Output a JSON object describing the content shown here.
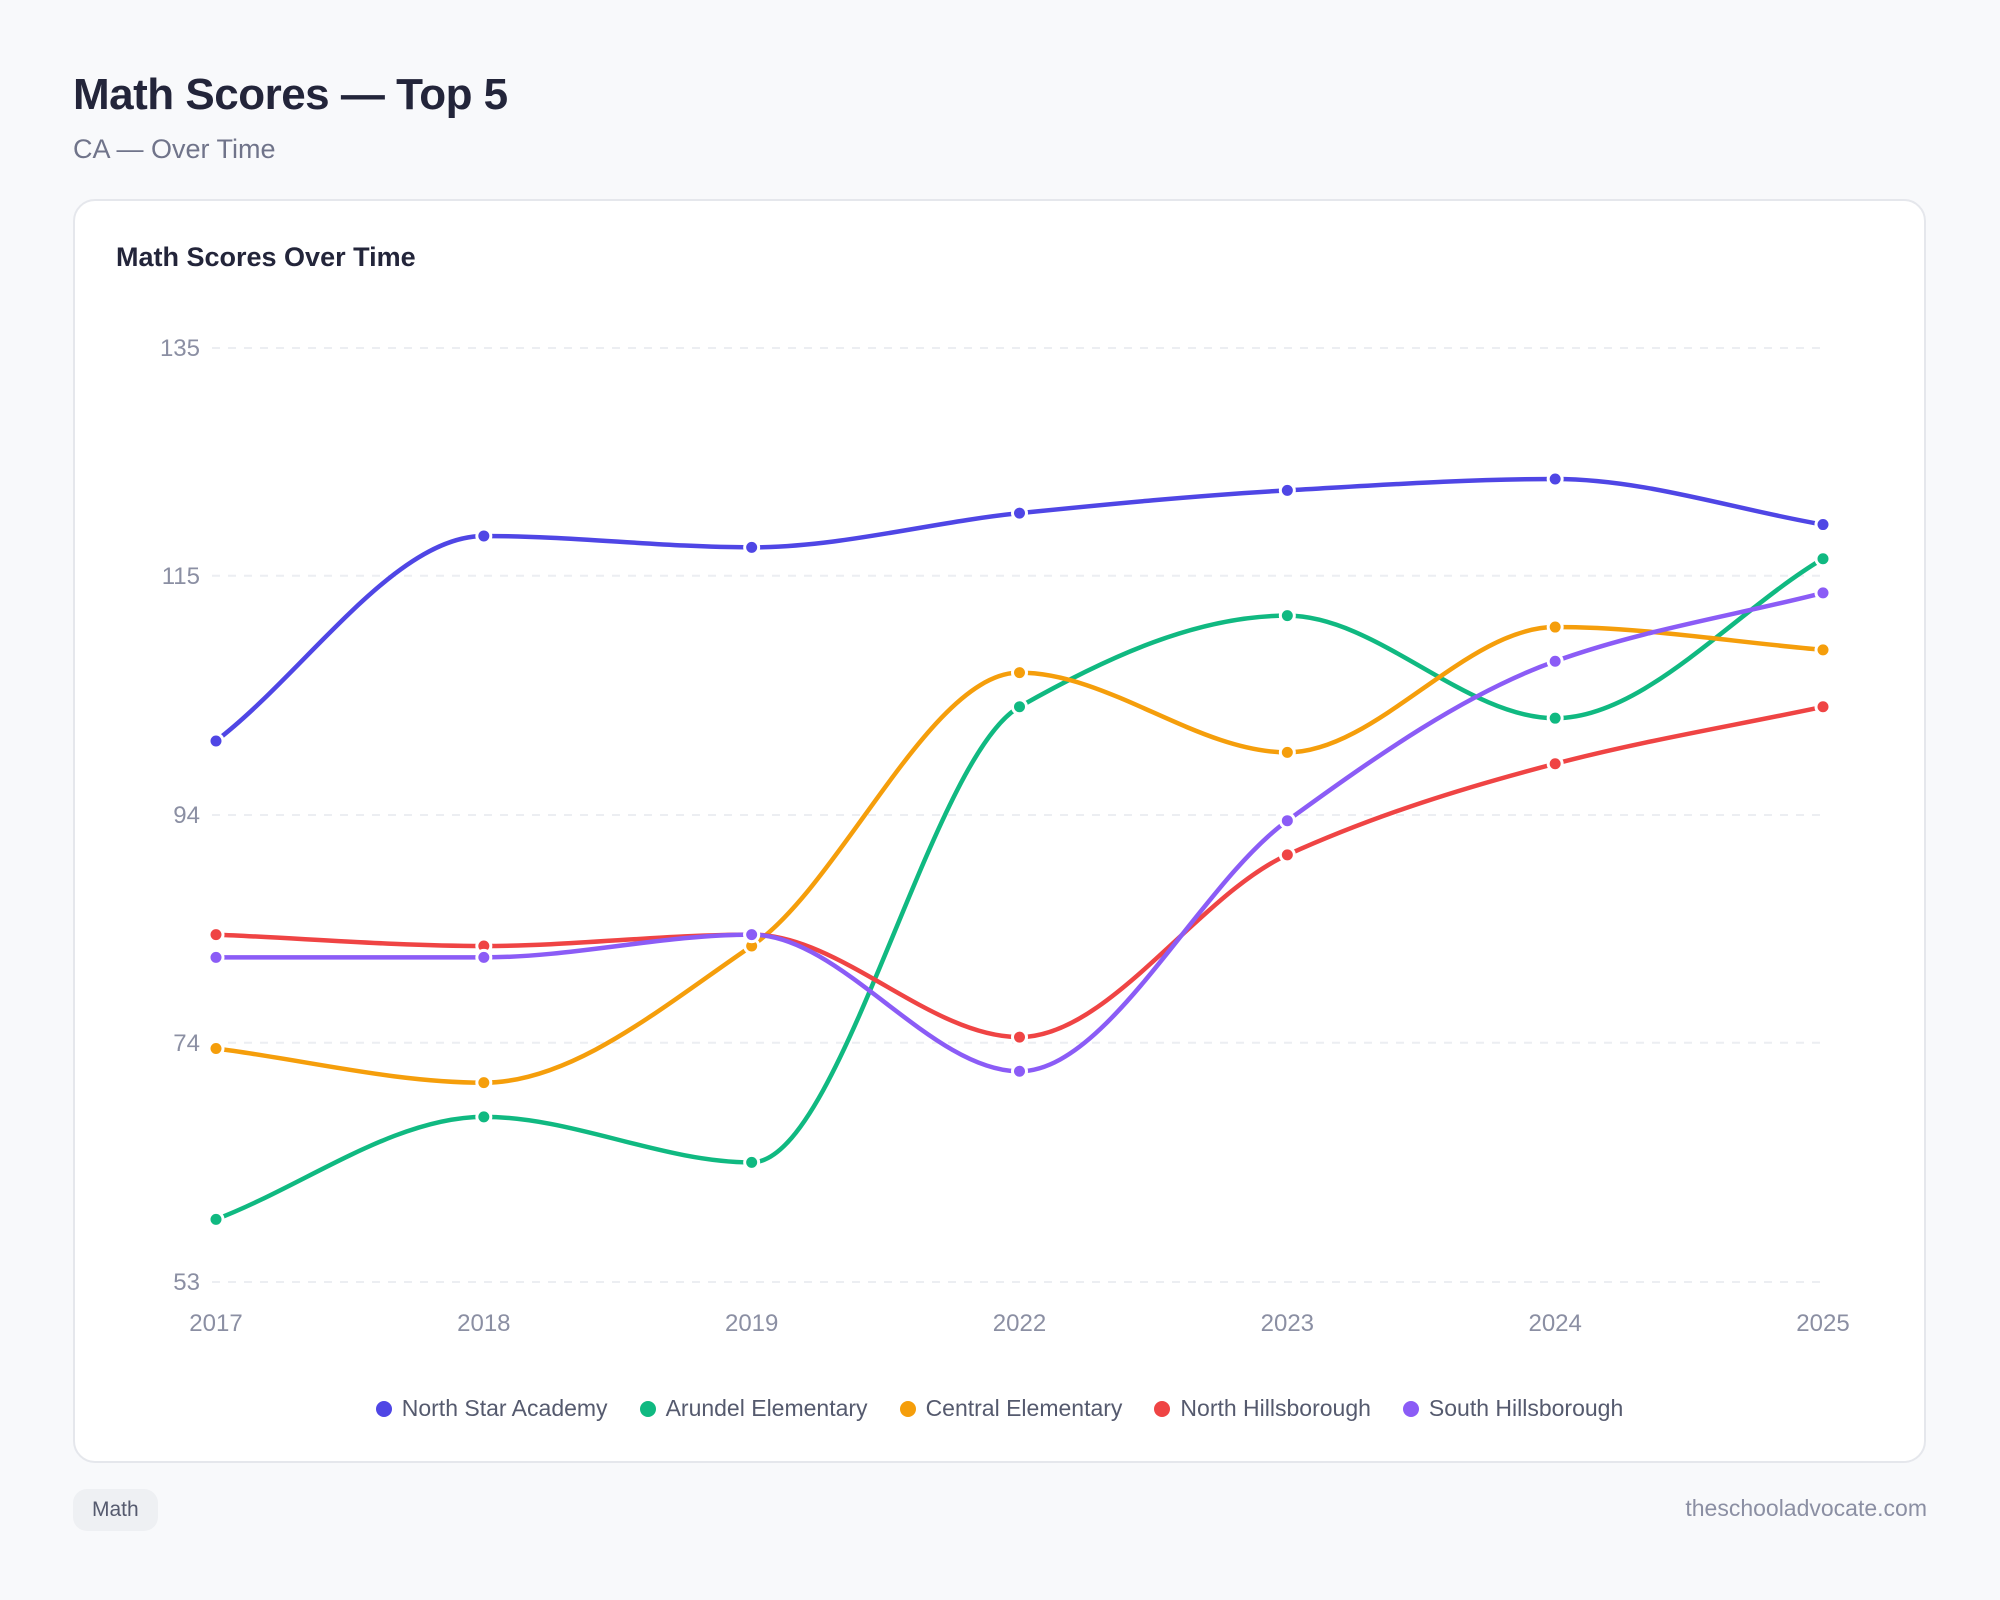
{
  "header": {
    "title": "Math Scores — Top 5",
    "subtitle": "CA — Over Time"
  },
  "card": {
    "title": "Math Scores Over Time"
  },
  "footer": {
    "tag": "Math",
    "site": "theschooladvocate.com"
  },
  "chart_data": {
    "type": "line",
    "title": "Math Scores Over Time",
    "xlabel": "",
    "ylabel": "",
    "categories": [
      "2017",
      "2018",
      "2019",
      "2022",
      "2023",
      "2024",
      "2025"
    ],
    "ylim": [
      53,
      135
    ],
    "yticks": [
      53,
      74,
      94,
      115,
      135
    ],
    "grid": true,
    "legend": "bottom",
    "series": [
      {
        "name": "North Star Academy",
        "color": "#4f46e5",
        "values": [
          100.5,
          118.5,
          117.5,
          120.5,
          122.5,
          123.5,
          119.5
        ]
      },
      {
        "name": "Arundel Elementary",
        "color": "#10b981",
        "values": [
          58.5,
          67.5,
          63.5,
          103.5,
          111.5,
          102.5,
          116.5
        ]
      },
      {
        "name": "Central Elementary",
        "color": "#f59e0b",
        "values": [
          73.5,
          70.5,
          82.5,
          106.5,
          99.5,
          110.5,
          108.5
        ]
      },
      {
        "name": "North Hillsborough",
        "color": "#ef4444",
        "values": [
          83.5,
          82.5,
          83.5,
          74.5,
          90.5,
          98.5,
          103.5
        ]
      },
      {
        "name": "South Hillsborough",
        "color": "#8b5cf6",
        "values": [
          81.5,
          81.5,
          83.5,
          71.5,
          93.5,
          107.5,
          113.5
        ]
      }
    ]
  }
}
